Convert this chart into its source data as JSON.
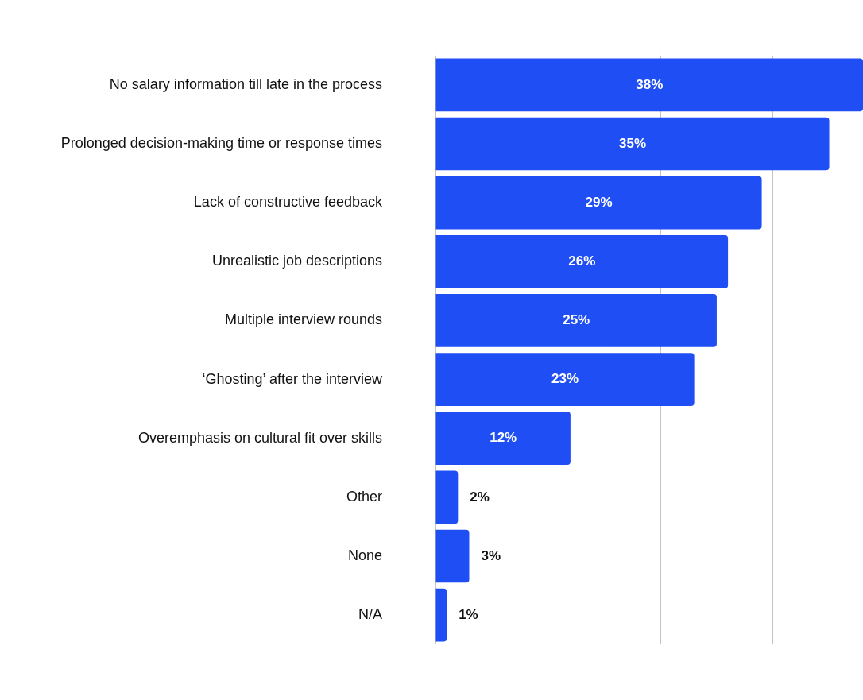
{
  "chart_data": {
    "type": "bar",
    "orientation": "horizontal",
    "categories": [
      "No salary information till late in the process",
      "Prolonged decision-making time or response times",
      "Lack of constructive feedback",
      "Unrealistic job descriptions",
      "Multiple interview rounds",
      "‘Ghosting’ after the interview",
      "Overemphasis on cultural fit over skills",
      "Other",
      "None",
      "N/A"
    ],
    "values": [
      38,
      35,
      29,
      26,
      25,
      23,
      12,
      2,
      3,
      1
    ],
    "color": "#1f4ef5",
    "value_labels": [
      "38%",
      "35%",
      "29%",
      "26%",
      "25%",
      "23%",
      "12%",
      "2%",
      "3%",
      "1%"
    ],
    "xlim": [
      0,
      38
    ],
    "xticks": [
      {
        "value": 0,
        "label": null
      },
      {
        "value": 10,
        "label": null
      },
      {
        "value": 20,
        "label": null
      },
      {
        "value": 30,
        "label": null
      }
    ],
    "grid": "x",
    "tick_labels": "y",
    "legend": false
  }
}
